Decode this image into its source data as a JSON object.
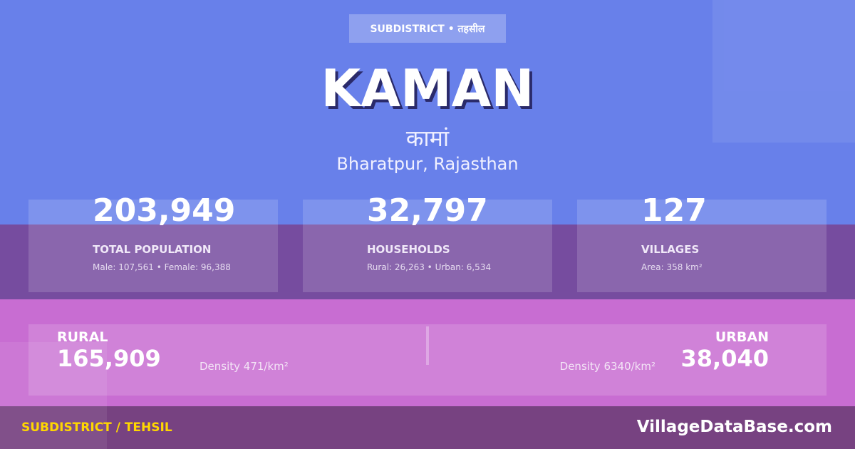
{
  "header": {
    "badge": "SUBDISTRICT • तहसील",
    "title": "KAMAN",
    "title_hindi": "कामां",
    "location": "Bharatpur, Rajasthan"
  },
  "stats": [
    {
      "value": "203,949",
      "label": "TOTAL POPULATION",
      "detail": "Male: 107,561 • Female: 96,388"
    },
    {
      "value": "32,797",
      "label": "HOUSEHOLDS",
      "detail": "Rural: 26,263 • Urban: 6,534"
    },
    {
      "value": "127",
      "label": "VILLAGES",
      "detail": "Area: 358 km²"
    }
  ],
  "rural": {
    "label": "RURAL",
    "value": "165,909",
    "density": "Density 471/km²"
  },
  "urban": {
    "label": "URBAN",
    "value": "38,040",
    "density": "Density 6340/km²"
  },
  "footer": {
    "category": "SUBDISTRICT / TEHSIL",
    "site": "VillageDataBase.com"
  },
  "colors": {
    "top": "#6880ea",
    "mid": "#764c9f",
    "pink": "#c86dd2",
    "footer": "#774281",
    "accent": "#ffd700"
  }
}
